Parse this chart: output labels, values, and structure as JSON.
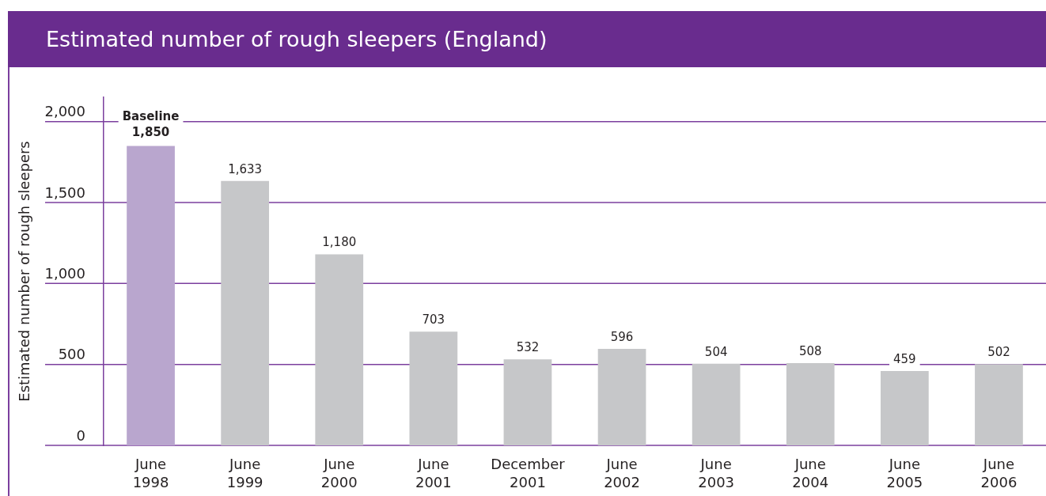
{
  "chart_data": {
    "type": "bar",
    "title": "Estimated number of rough sleepers (England)",
    "ylabel": "Estimated number of rough sleepers",
    "categories": [
      "June 1998",
      "June 1999",
      "June 2000",
      "June 2001",
      "December 2001",
      "June 2002",
      "June 2003",
      "June 2004",
      "June 2005",
      "June 2006"
    ],
    "values": [
      1850,
      1633,
      1180,
      703,
      532,
      596,
      504,
      508,
      459,
      502
    ],
    "colors": [
      "#b9a6ce",
      "#c6c7c9",
      "#c6c7c9",
      "#c6c7c9",
      "#c6c7c9",
      "#c6c7c9",
      "#c6c7c9",
      "#c6c7c9",
      "#c6c7c9",
      "#c6c7c9"
    ],
    "value_labels": [
      "1,850",
      "1,633",
      "1,180",
      "703",
      "532",
      "596",
      "504",
      "508",
      "459",
      "502"
    ],
    "annotations": [
      {
        "text": "Baseline",
        "x": "June 1998",
        "y": 1850
      }
    ],
    "ylim": [
      0,
      2150
    ],
    "yticks": [
      0,
      500,
      {
        "value": 1000,
        "label": "1,000"
      },
      {
        "value": 1500,
        "label": "1,500"
      },
      {
        "value": 2000,
        "label": "2,000"
      }
    ],
    "grid": "y"
  }
}
